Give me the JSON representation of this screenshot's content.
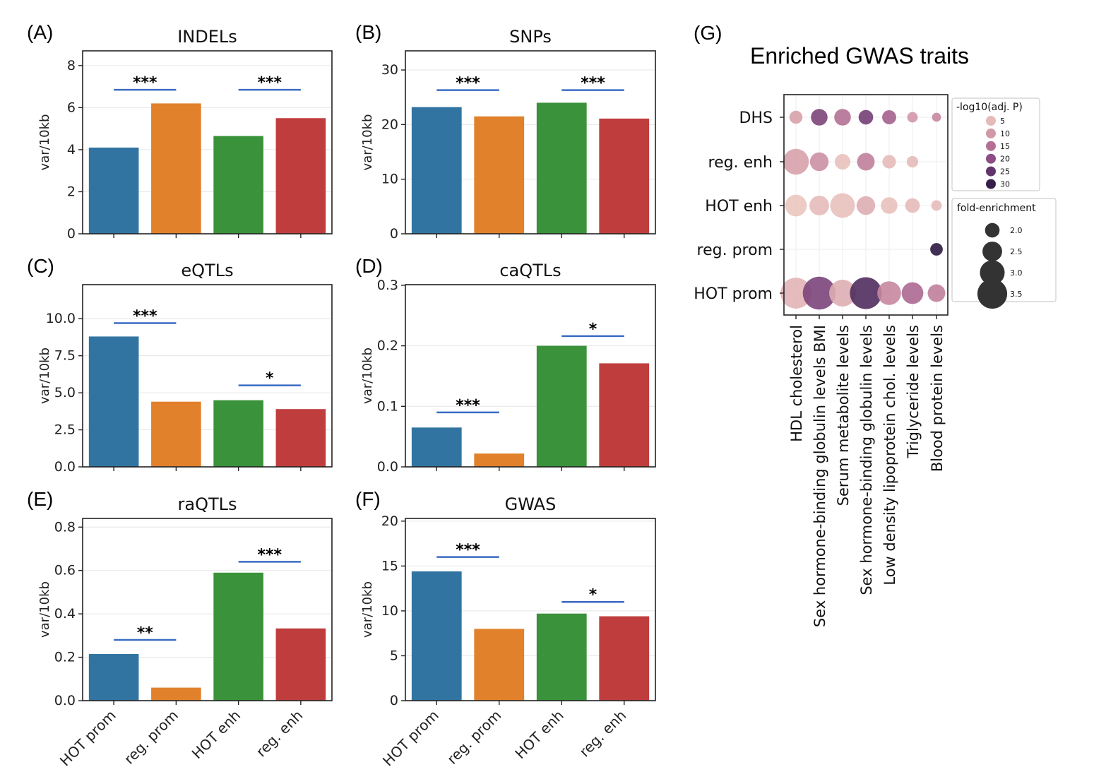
{
  "chart_data": [
    {
      "type": "bar",
      "panel_label": "(A)",
      "title": "INDELs",
      "ylabel": "var/10kb",
      "categories": [
        "HOT prom",
        "reg. prom",
        "HOT enh",
        "reg. enh"
      ],
      "values": [
        4.1,
        6.2,
        4.65,
        5.5
      ],
      "ylim": [
        0,
        8.7
      ],
      "yticks": [
        0,
        2,
        4,
        6,
        8
      ],
      "ytick_labels": [
        "0",
        "2",
        "4",
        "6",
        "8"
      ],
      "significance": [
        {
          "label": "***",
          "from": 0,
          "to": 1,
          "y": 6.85
        },
        {
          "label": "***",
          "from": 2,
          "to": 3,
          "y": 6.85
        }
      ]
    },
    {
      "type": "bar",
      "panel_label": "(B)",
      "title": "SNPs",
      "ylabel": "var/10kb",
      "categories": [
        "HOT prom",
        "reg. prom",
        "HOT enh",
        "reg. enh"
      ],
      "values": [
        23.2,
        21.5,
        24.0,
        21.1
      ],
      "ylim": [
        0,
        33.5
      ],
      "yticks": [
        0,
        10,
        20,
        30
      ],
      "ytick_labels": [
        "0",
        "10",
        "20",
        "30"
      ],
      "significance": [
        {
          "label": "***",
          "from": 0,
          "to": 1,
          "y": 26.3
        },
        {
          "label": "***",
          "from": 2,
          "to": 3,
          "y": 26.3
        }
      ]
    },
    {
      "type": "bar",
      "panel_label": "(C)",
      "title": "eQTLs",
      "ylabel": "var/10kb",
      "categories": [
        "HOT prom",
        "reg. prom",
        "HOT enh",
        "reg. enh"
      ],
      "values": [
        8.8,
        4.4,
        4.5,
        3.9
      ],
      "ylim": [
        0,
        12.3
      ],
      "yticks": [
        0,
        2.5,
        5,
        7.5,
        10
      ],
      "ytick_labels": [
        "0.0",
        "2.5",
        "5.0",
        "7.5",
        "10.0"
      ],
      "significance": [
        {
          "label": "***",
          "from": 0,
          "to": 1,
          "y": 9.7
        },
        {
          "label": "*",
          "from": 2,
          "to": 3,
          "y": 5.5
        }
      ]
    },
    {
      "type": "bar",
      "panel_label": "(D)",
      "title": "caQTLs",
      "ylabel": "var/10kb",
      "categories": [
        "HOT prom",
        "reg. prom",
        "HOT enh",
        "reg. enh"
      ],
      "values": [
        0.065,
        0.022,
        0.2,
        0.171
      ],
      "ylim": [
        0,
        0.301
      ],
      "yticks": [
        0,
        0.1,
        0.2,
        0.3
      ],
      "ytick_labels": [
        "0.0",
        "0.1",
        "0.2",
        "0.3"
      ],
      "significance": [
        {
          "label": "***",
          "from": 0,
          "to": 1,
          "y": 0.09
        },
        {
          "label": "*",
          "from": 2,
          "to": 3,
          "y": 0.216
        }
      ]
    },
    {
      "type": "bar",
      "panel_label": "(E)",
      "title": "raQTLs",
      "ylabel": "var/10kb",
      "categories": [
        "HOT prom",
        "reg. prom",
        "HOT enh",
        "reg. enh"
      ],
      "values": [
        0.215,
        0.06,
        0.59,
        0.333
      ],
      "ylim": [
        0,
        0.84
      ],
      "yticks": [
        0,
        0.2,
        0.4,
        0.6,
        0.8
      ],
      "ytick_labels": [
        "0.0",
        "0.2",
        "0.4",
        "0.6",
        "0.8"
      ],
      "significance": [
        {
          "label": "**",
          "from": 0,
          "to": 1,
          "y": 0.28
        },
        {
          "label": "***",
          "from": 2,
          "to": 3,
          "y": 0.64
        }
      ]
    },
    {
      "type": "bar",
      "panel_label": "(F)",
      "title": "GWAS",
      "ylabel": "var/10kb",
      "categories": [
        "HOT prom",
        "reg. prom",
        "HOT enh",
        "reg. enh"
      ],
      "values": [
        14.4,
        8.0,
        9.7,
        9.4
      ],
      "ylim": [
        0,
        20.3
      ],
      "yticks": [
        0,
        5,
        10,
        15,
        20
      ],
      "ytick_labels": [
        "0",
        "5",
        "10",
        "15",
        "20"
      ],
      "significance": [
        {
          "label": "***",
          "from": 0,
          "to": 1,
          "y": 16.0
        },
        {
          "label": "*",
          "from": 2,
          "to": 3,
          "y": 11.0
        }
      ]
    },
    {
      "type": "scatter",
      "panel_label": "(G)",
      "title": "Enriched GWAS traits",
      "rows": [
        "DHS",
        "reg. enh",
        "HOT enh",
        "reg. prom",
        "HOT prom"
      ],
      "columns": [
        "HDL cholesterol",
        "Sex hormone-binding globulin levels BMI",
        "Serum metabolite levels",
        "Sex hormone-binding globulin levels",
        "Low density lipoprotein chol. levels",
        "Triglyceride levels",
        "Blood protein levels"
      ],
      "points": [
        {
          "row": "DHS",
          "col": 0,
          "neglog10p": 9,
          "fold": 1.85
        },
        {
          "row": "DHS",
          "col": 1,
          "neglog10p": 22,
          "fold": 2.2
        },
        {
          "row": "DHS",
          "col": 2,
          "neglog10p": 15,
          "fold": 2.2
        },
        {
          "row": "DHS",
          "col": 3,
          "neglog10p": 23,
          "fold": 2.0
        },
        {
          "row": "DHS",
          "col": 4,
          "neglog10p": 17,
          "fold": 1.95
        },
        {
          "row": "DHS",
          "col": 5,
          "neglog10p": 10,
          "fold": 1.6
        },
        {
          "row": "DHS",
          "col": 6,
          "neglog10p": 12,
          "fold": 1.45
        },
        {
          "row": "reg. enh",
          "col": 0,
          "neglog10p": 9,
          "fold": 3.1
        },
        {
          "row": "reg. enh",
          "col": 1,
          "neglog10p": 11,
          "fold": 2.4
        },
        {
          "row": "reg. enh",
          "col": 2,
          "neglog10p": 4,
          "fold": 2.1
        },
        {
          "row": "reg. enh",
          "col": 3,
          "neglog10p": 13,
          "fold": 2.3
        },
        {
          "row": "reg. enh",
          "col": 4,
          "neglog10p": 5,
          "fold": 1.9
        },
        {
          "row": "reg. enh",
          "col": 5,
          "neglog10p": 5,
          "fold": 1.7
        },
        {
          "row": "HOT enh",
          "col": 0,
          "neglog10p": 3,
          "fold": 2.7
        },
        {
          "row": "HOT enh",
          "col": 1,
          "neglog10p": 5,
          "fold": 2.5
        },
        {
          "row": "HOT enh",
          "col": 2,
          "neglog10p": 4,
          "fold": 3.0
        },
        {
          "row": "HOT enh",
          "col": 3,
          "neglog10p": 7,
          "fold": 2.4
        },
        {
          "row": "HOT enh",
          "col": 4,
          "neglog10p": 4,
          "fold": 2.2
        },
        {
          "row": "HOT enh",
          "col": 5,
          "neglog10p": 5,
          "fold": 2.0
        },
        {
          "row": "HOT enh",
          "col": 6,
          "neglog10p": 5,
          "fold": 1.6
        },
        {
          "row": "reg. prom",
          "col": 6,
          "neglog10p": 31,
          "fold": 1.8
        },
        {
          "row": "HOT prom",
          "col": 0,
          "neglog10p": 6,
          "fold": 3.6
        },
        {
          "row": "HOT prom",
          "col": 1,
          "neglog10p": 22,
          "fold": 3.8
        },
        {
          "row": "HOT prom",
          "col": 2,
          "neglog10p": 7,
          "fold": 3.2
        },
        {
          "row": "HOT prom",
          "col": 3,
          "neglog10p": 27,
          "fold": 3.7
        },
        {
          "row": "HOT prom",
          "col": 4,
          "neglog10p": 12,
          "fold": 2.9
        },
        {
          "row": "HOT prom",
          "col": 5,
          "neglog10p": 16,
          "fold": 2.7
        },
        {
          "row": "HOT prom",
          "col": 6,
          "neglog10p": 13,
          "fold": 2.3
        }
      ],
      "legend_color": {
        "title": "-log10(adj. P)",
        "entries": [
          {
            "label": "5",
            "value": 5
          },
          {
            "label": "10",
            "value": 10
          },
          {
            "label": "15",
            "value": 15
          },
          {
            "label": "20",
            "value": 20
          },
          {
            "label": "25",
            "value": 25
          },
          {
            "label": "30",
            "value": 30
          }
        ]
      },
      "legend_size": {
        "title": "fold-enrichment",
        "entries": [
          {
            "label": "2.0",
            "value": 2.0
          },
          {
            "label": "2.5",
            "value": 2.5
          },
          {
            "label": "3.0",
            "value": 3.0
          },
          {
            "label": "3.5",
            "value": 3.5
          }
        ]
      },
      "legend_placement": "right",
      "grid": true
    }
  ],
  "colors": {
    "bars": [
      "#3274a1",
      "#e1812c",
      "#3a923a",
      "#c03d3e"
    ],
    "significance_line": "#3a6bc4",
    "grid": "#e6e6e6",
    "palette_low": "#ecc7c0",
    "palette_high": "#2c1a40"
  }
}
